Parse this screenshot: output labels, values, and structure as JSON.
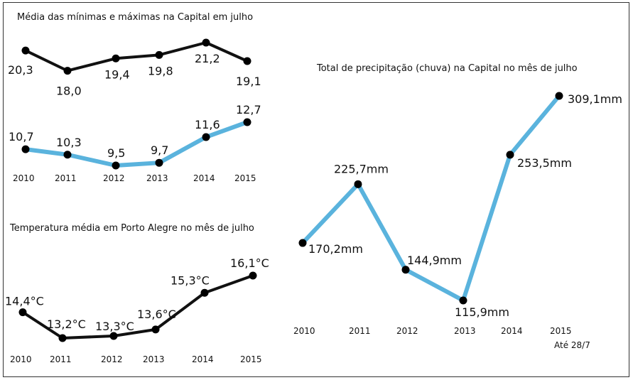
{
  "chart_data": [
    {
      "type": "line",
      "title": "Média das mínimas e máximas na Capital em julho",
      "categories": [
        "2010",
        "2011",
        "2012",
        "2013",
        "2014",
        "2015"
      ],
      "series": [
        {
          "values": [
            20.3,
            18.0,
            19.4,
            19.8,
            21.2,
            19.1
          ],
          "labels": [
            "20,3",
            "18,0",
            "19,4",
            "19,8",
            "21,2",
            "19,1"
          ],
          "color": "#111111"
        },
        {
          "values": [
            10.7,
            10.3,
            9.5,
            9.7,
            11.6,
            12.7
          ],
          "labels": [
            "10,7",
            "10,3",
            "9,5",
            "9,7",
            "11,6",
            "12,7"
          ],
          "color": "#5ab3dd"
        }
      ]
    },
    {
      "type": "line",
      "title": "Temperatura média em Porto Alegre no mês de julho",
      "categories": [
        "2010",
        "2011",
        "2012",
        "2013",
        "2014",
        "2015"
      ],
      "series": [
        {
          "values": [
            14.4,
            13.2,
            13.3,
            13.6,
            15.3,
            16.1
          ],
          "labels": [
            "14,4°C",
            "13,2°C",
            "13,3°C",
            "13,6°C",
            "15,3°C",
            "16,1°C"
          ],
          "color": "#111111"
        }
      ]
    },
    {
      "type": "line",
      "title": "Total de precipitação (chuva) na Capital no mês de julho",
      "categories": [
        "2010",
        "2011",
        "2012",
        "2013",
        "2014",
        "2015"
      ],
      "note": "Até 28/7",
      "series": [
        {
          "values": [
            170.2,
            225.7,
            144.9,
            115.9,
            253.5,
            309.1
          ],
          "labels": [
            "170,2mm",
            "225,7mm",
            "144,9mm",
            "115,9mm",
            "253,5mm",
            "309,1mm"
          ],
          "color": "#5ab3dd"
        }
      ]
    }
  ]
}
